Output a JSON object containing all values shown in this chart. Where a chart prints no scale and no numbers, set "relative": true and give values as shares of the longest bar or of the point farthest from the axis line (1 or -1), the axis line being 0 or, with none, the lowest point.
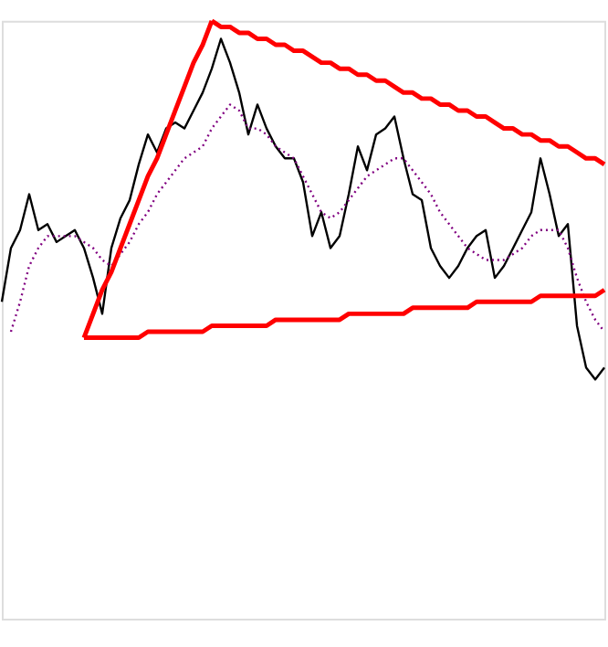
{
  "chart_data": {
    "type": "line",
    "relative": true,
    "marker": "none",
    "categories": [
      null,
      null,
      null,
      null,
      null,
      null,
      null,
      null,
      null,
      null,
      null,
      null,
      null,
      null,
      null,
      null,
      null,
      null,
      null,
      null,
      null,
      null,
      null,
      null,
      null,
      null,
      null,
      null,
      null,
      null,
      null,
      null,
      null,
      null,
      null,
      null,
      null,
      null,
      null,
      null,
      null,
      null,
      null,
      null,
      null,
      null,
      null,
      null,
      null,
      null,
      null,
      null,
      null,
      null,
      null,
      null,
      null,
      null,
      null,
      null,
      null,
      null,
      null,
      null,
      null,
      null,
      null
    ],
    "series": [
      {
        "color": "#000000",
        "line_style": "solid",
        "values": [
          0.53,
          0.62,
          0.65,
          0.71,
          0.65,
          0.66,
          0.63,
          0.64,
          0.65,
          0.62,
          0.57,
          0.51,
          0.62,
          0.67,
          0.7,
          0.76,
          0.81,
          0.78,
          0.82,
          0.83,
          0.82,
          0.85,
          0.88,
          0.92,
          0.97,
          0.93,
          0.88,
          0.81,
          0.86,
          0.82,
          0.79,
          0.77,
          0.77,
          0.73,
          0.64,
          0.68,
          0.62,
          0.64,
          0.71,
          0.79,
          0.75,
          0.81,
          0.82,
          0.84,
          0.77,
          0.71,
          0.7,
          0.62,
          0.59,
          0.57,
          0.59,
          0.62,
          0.64,
          0.65,
          0.57,
          0.59,
          0.62,
          0.65,
          0.68,
          0.77,
          0.71,
          0.64,
          0.66,
          0.49,
          0.42,
          0.4,
          0.42
        ]
      },
      {
        "color": "#800080",
        "line_style": "dotted",
        "values": [
          null,
          0.48,
          0.53,
          0.59,
          0.62,
          0.64,
          0.64,
          0.64,
          0.64,
          0.63,
          0.62,
          0.6,
          0.59,
          0.61,
          0.63,
          0.66,
          0.68,
          0.71,
          0.73,
          0.75,
          0.77,
          0.78,
          0.79,
          0.82,
          0.84,
          0.86,
          0.85,
          0.82,
          0.82,
          0.81,
          0.79,
          0.78,
          0.77,
          0.74,
          0.71,
          0.68,
          0.67,
          0.68,
          0.7,
          0.72,
          0.74,
          0.75,
          0.76,
          0.77,
          0.77,
          0.75,
          0.73,
          0.71,
          0.68,
          0.66,
          0.64,
          0.62,
          0.61,
          0.6,
          0.6,
          0.6,
          0.61,
          0.62,
          0.64,
          0.65,
          0.65,
          0.65,
          0.62,
          0.57,
          0.53,
          0.5,
          0.48
        ]
      },
      {
        "color": "#ff0000",
        "line_style": "solid",
        "values": [
          null,
          null,
          null,
          null,
          null,
          null,
          null,
          null,
          null,
          null,
          null,
          null,
          null,
          null,
          null,
          null,
          null,
          null,
          null,
          null,
          null,
          null,
          null,
          1.0,
          0.99,
          0.99,
          0.98,
          0.98,
          0.97,
          0.97,
          0.96,
          0.96,
          0.95,
          0.95,
          0.94,
          0.93,
          0.93,
          0.92,
          0.92,
          0.91,
          0.91,
          0.9,
          0.9,
          0.89,
          0.88,
          0.88,
          0.87,
          0.87,
          0.86,
          0.86,
          0.85,
          0.85,
          0.84,
          0.84,
          0.83,
          0.82,
          0.82,
          0.81,
          0.81,
          0.8,
          0.8,
          0.79,
          0.79,
          0.78,
          0.77,
          0.77,
          0.76
        ]
      },
      {
        "color": "#ff0000",
        "line_style": "solid",
        "values": [
          null,
          null,
          null,
          null,
          null,
          null,
          null,
          null,
          null,
          0.47,
          0.47,
          0.47,
          0.47,
          0.47,
          0.47,
          0.47,
          0.48,
          0.48,
          0.48,
          0.48,
          0.48,
          0.48,
          0.48,
          0.49,
          0.49,
          0.49,
          0.49,
          0.49,
          0.49,
          0.49,
          0.5,
          0.5,
          0.5,
          0.5,
          0.5,
          0.5,
          0.5,
          0.5,
          0.51,
          0.51,
          0.51,
          0.51,
          0.51,
          0.51,
          0.51,
          0.52,
          0.52,
          0.52,
          0.52,
          0.52,
          0.52,
          0.52,
          0.53,
          0.53,
          0.53,
          0.53,
          0.53,
          0.53,
          0.53,
          0.54,
          0.54,
          0.54,
          0.54,
          0.54,
          0.54,
          0.54,
          0.55
        ]
      },
      {
        "color": "#ff0000",
        "line_style": "solid",
        "values": [
          null,
          null,
          null,
          null,
          null,
          null,
          null,
          null,
          null,
          0.47,
          0.51,
          0.55,
          0.58,
          0.62,
          0.66,
          0.7,
          0.74,
          0.77,
          0.81,
          0.85,
          0.89,
          0.93,
          0.96,
          1.0,
          null,
          null,
          null,
          null,
          null,
          null,
          null,
          null,
          null,
          null,
          null,
          null,
          null,
          null,
          null,
          null,
          null,
          null,
          null,
          null,
          null,
          null,
          null,
          null,
          null,
          null,
          null,
          null,
          null,
          null,
          null,
          null,
          null,
          null,
          null,
          null,
          null,
          null,
          null,
          null,
          null,
          null,
          null
        ]
      }
    ]
  }
}
